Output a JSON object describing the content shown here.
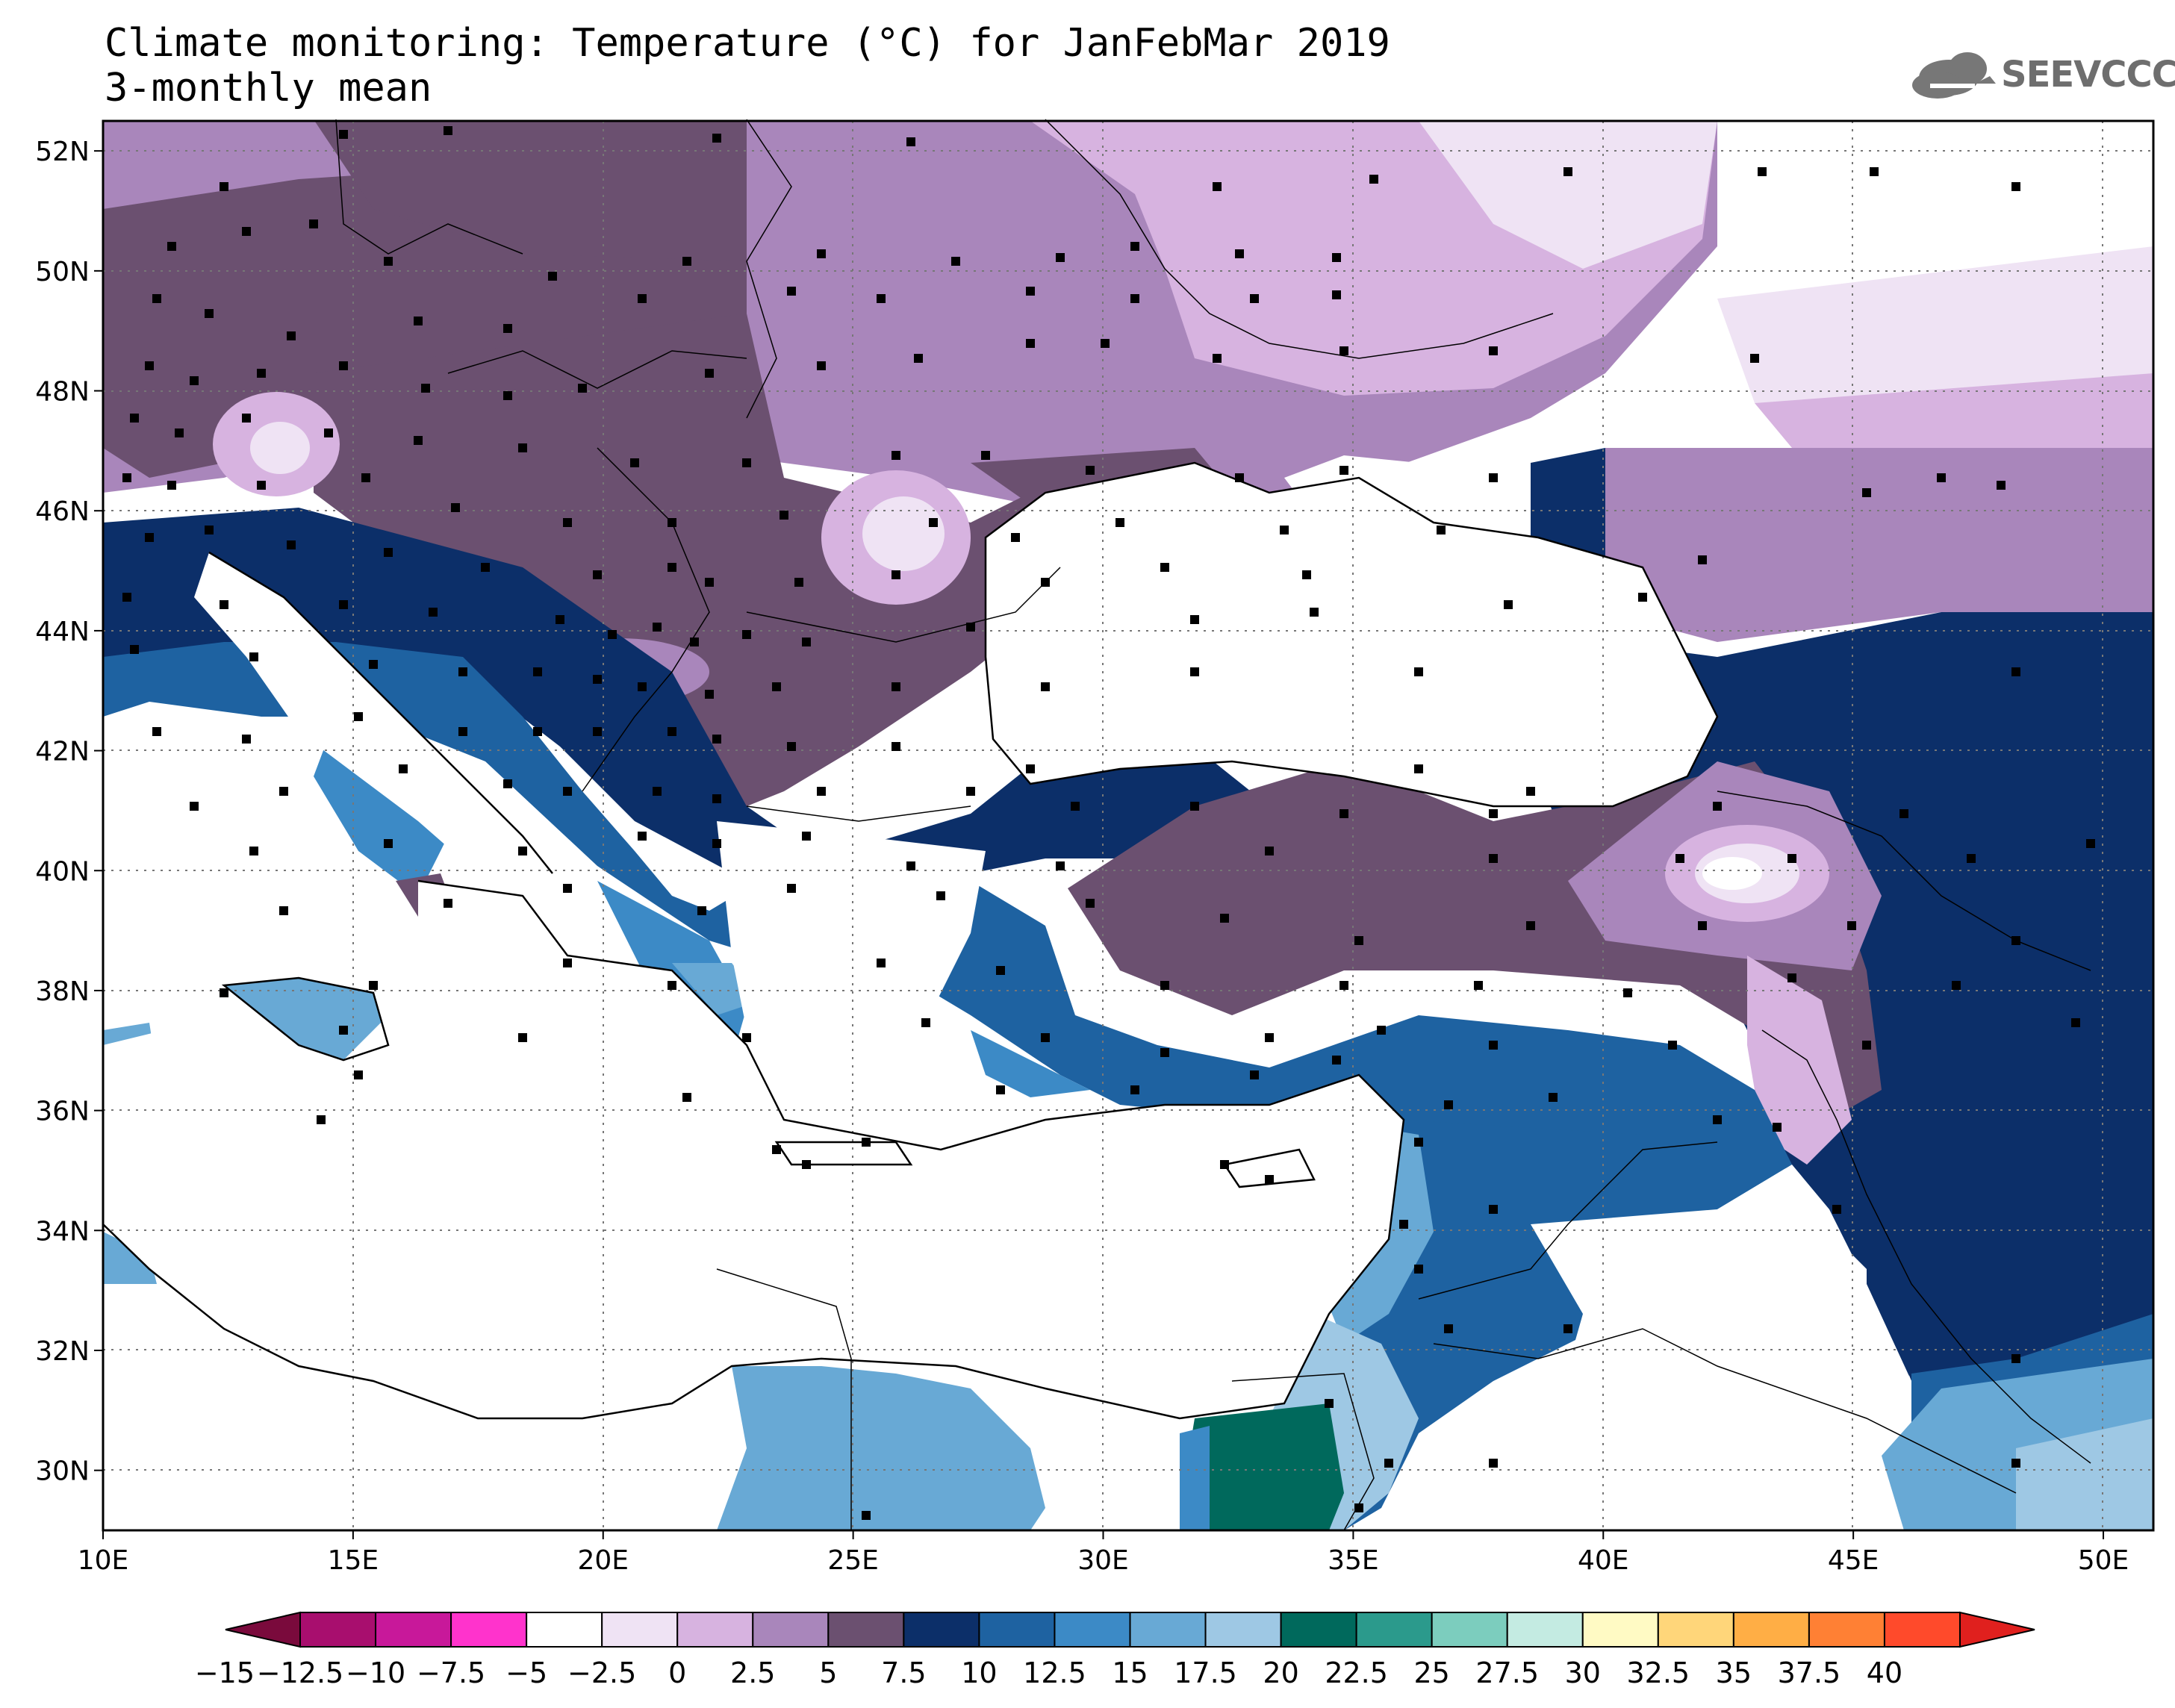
{
  "header": {
    "title": "Climate monitoring: Temperature (°C) for JanFebMar 2019",
    "subtitle": "3-monthly mean",
    "logo_text": "SEEVCCC"
  },
  "map": {
    "lon_labels": [
      "10E",
      "15E",
      "20E",
      "25E",
      "30E",
      "35E",
      "40E",
      "45E",
      "50E"
    ],
    "lat_labels": [
      "52N",
      "50N",
      "48N",
      "46N",
      "44N",
      "42N",
      "40N",
      "38N",
      "36N",
      "34N",
      "32N",
      "30N"
    ],
    "lon_range": [
      10,
      51
    ],
    "lat_range": [
      29,
      52.5
    ]
  },
  "colorbar": {
    "labels": [
      "−15",
      "−12.5",
      "−10",
      "−7.5",
      "−5",
      "−2.5",
      "0",
      "2.5",
      "5",
      "7.5",
      "10",
      "12.5",
      "15",
      "17.5",
      "20",
      "22.5",
      "25",
      "27.5",
      "30",
      "32.5",
      "35",
      "37.5",
      "40"
    ],
    "colors": [
      "#8e0a4c",
      "#a80e6e",
      "#c8189a",
      "#ff33cc",
      "#ffffff",
      "#efe3f4",
      "#d7b3e0",
      "#a986bb",
      "#6b5070",
      "#0c2f69",
      "#1e62a1",
      "#3c8ac6",
      "#68a9d5",
      "#9ec8e4",
      "#00695c",
      "#2b9a8c",
      "#7ccdbe",
      "#c4ebe2",
      "#fffac4",
      "#ffd67a",
      "#ffae45",
      "#ff8034",
      "#ff4a2b",
      "#e0201e"
    ],
    "min_arrow_color": "#7a0a3c",
    "max_arrow_color": "#e0201e"
  }
}
